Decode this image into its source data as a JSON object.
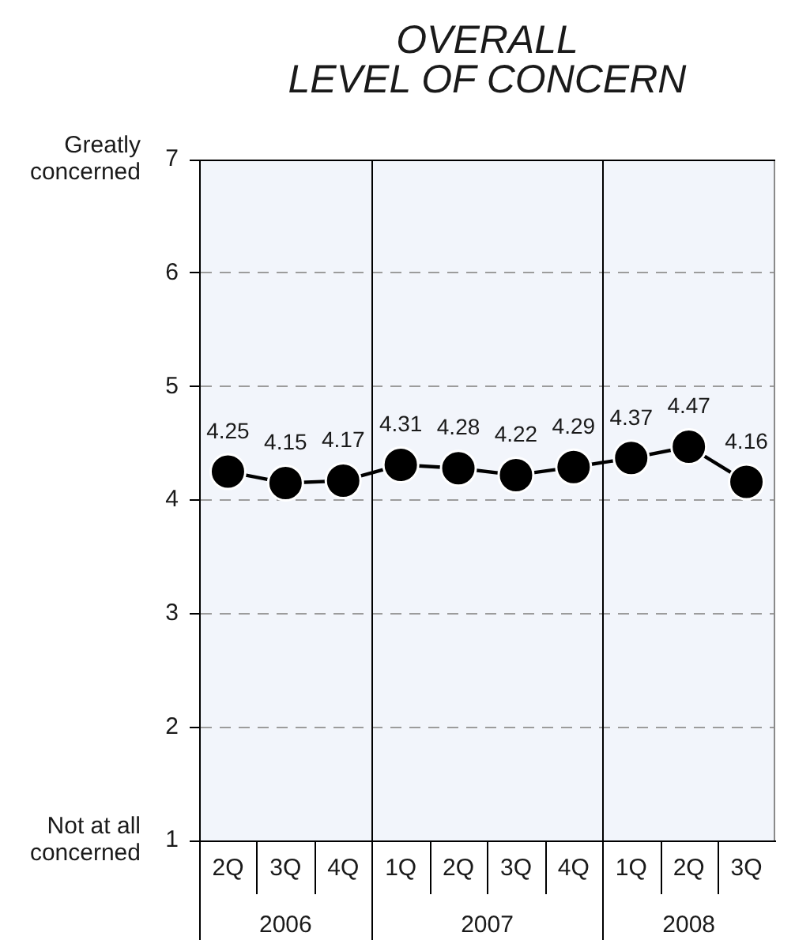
{
  "chart_data": {
    "type": "line",
    "title": "OVERALL\nLEVEL OF CONCERN",
    "categories": [
      "2Q",
      "3Q",
      "4Q",
      "1Q",
      "2Q",
      "3Q",
      "4Q",
      "1Q",
      "2Q",
      "3Q"
    ],
    "values": [
      4.25,
      4.15,
      4.17,
      4.31,
      4.28,
      4.22,
      4.29,
      4.37,
      4.47,
      4.16
    ],
    "color": "#000000",
    "ylim": [
      1,
      7
    ],
    "yticks": [
      1,
      2,
      3,
      4,
      5,
      6,
      7
    ],
    "annotations": [
      "Greatly\nconcerned",
      "Not at all\nconcerned",
      "2006",
      "2007",
      "2008"
    ],
    "grid": "y",
    "marker": "circle",
    "line_style": "solid",
    "data_labels": true
  }
}
